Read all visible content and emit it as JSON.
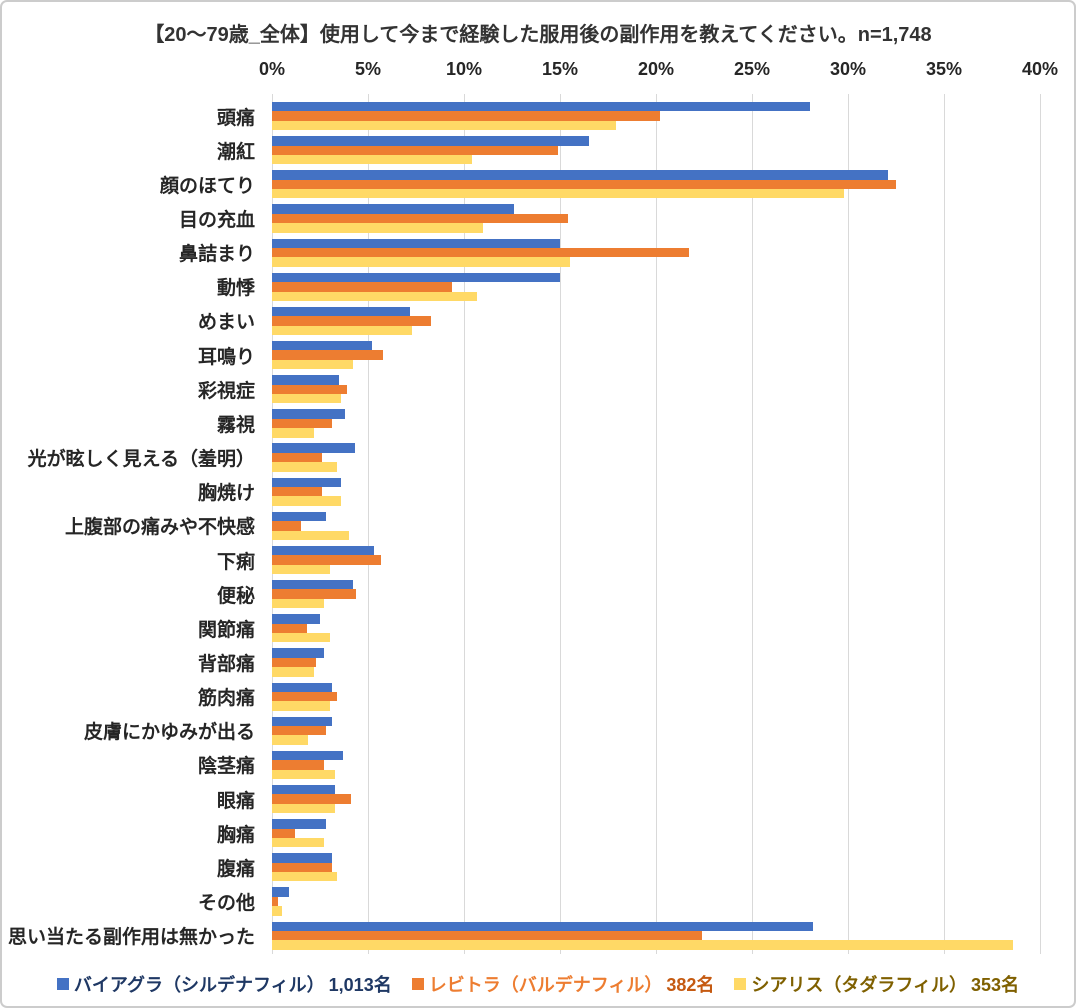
{
  "chart_data": {
    "type": "bar",
    "orientation": "horizontal",
    "title": "【20〜79歳_全体】使用して今まで経験した服用後の副作用を教えてください。n=1,748",
    "x_axis": {
      "min": 0,
      "max": 40,
      "tick_step": 5,
      "tick_labels": [
        "0%",
        "5%",
        "10%",
        "15%",
        "20%",
        "25%",
        "30%",
        "35%",
        "40%"
      ],
      "unit": "%",
      "position": "top"
    },
    "grid": true,
    "legend_position": "bottom",
    "categories": [
      "頭痛",
      "潮紅",
      "顔のほてり",
      "目の充血",
      "鼻詰まり",
      "動悸",
      "めまい",
      "耳鳴り",
      "彩視症",
      "霧視",
      "光が眩しく見える（羞明）",
      "胸焼け",
      "上腹部の痛みや不快感",
      "下痢",
      "便秘",
      "関節痛",
      "背部痛",
      "筋肉痛",
      "皮膚にかゆみが出る",
      "陰茎痛",
      "眼痛",
      "胸痛",
      "腹痛",
      "その他",
      "思い当たる副作用は無かった"
    ],
    "series": [
      {
        "name": "バイアグラ（シルデナフィル）",
        "count_label": "1,013名",
        "color": "#4472C4",
        "text_color": "#1F3864",
        "count_color": "#1F3864",
        "values": [
          28.0,
          16.5,
          32.1,
          12.6,
          15.0,
          15.0,
          7.2,
          5.2,
          3.5,
          3.8,
          4.3,
          3.6,
          2.8,
          5.3,
          4.2,
          2.5,
          2.7,
          3.1,
          3.1,
          3.7,
          3.3,
          2.8,
          3.1,
          0.9,
          28.2
        ]
      },
      {
        "name": "レビトラ（バルデナフィル）",
        "count_label": "382名",
        "color": "#ED7D31",
        "text_color": "#ED7D31",
        "count_color": "#C55A11",
        "values": [
          20.2,
          14.9,
          32.5,
          15.4,
          21.7,
          9.4,
          8.3,
          5.8,
          3.9,
          3.1,
          2.6,
          2.6,
          1.5,
          5.7,
          4.4,
          1.8,
          2.3,
          3.4,
          2.8,
          2.7,
          4.1,
          1.2,
          3.1,
          0.3,
          22.4
        ]
      },
      {
        "name": "シアリス（タダラフィル）",
        "count_label": "353名",
        "color": "#FFD966",
        "text_color": "#7F6000",
        "count_color": "#7F6000",
        "values": [
          17.9,
          10.4,
          29.8,
          11.0,
          15.5,
          10.7,
          7.3,
          4.2,
          3.6,
          2.2,
          3.4,
          3.6,
          4.0,
          3.0,
          2.7,
          3.0,
          2.2,
          3.0,
          1.9,
          3.3,
          3.3,
          2.7,
          3.4,
          0.5,
          38.6
        ]
      }
    ]
  },
  "styles": {
    "grid_color": "#D9D9D9",
    "text_color": "#262626",
    "background": "#FFFFFF",
    "border_color": "#CCCCCC"
  }
}
